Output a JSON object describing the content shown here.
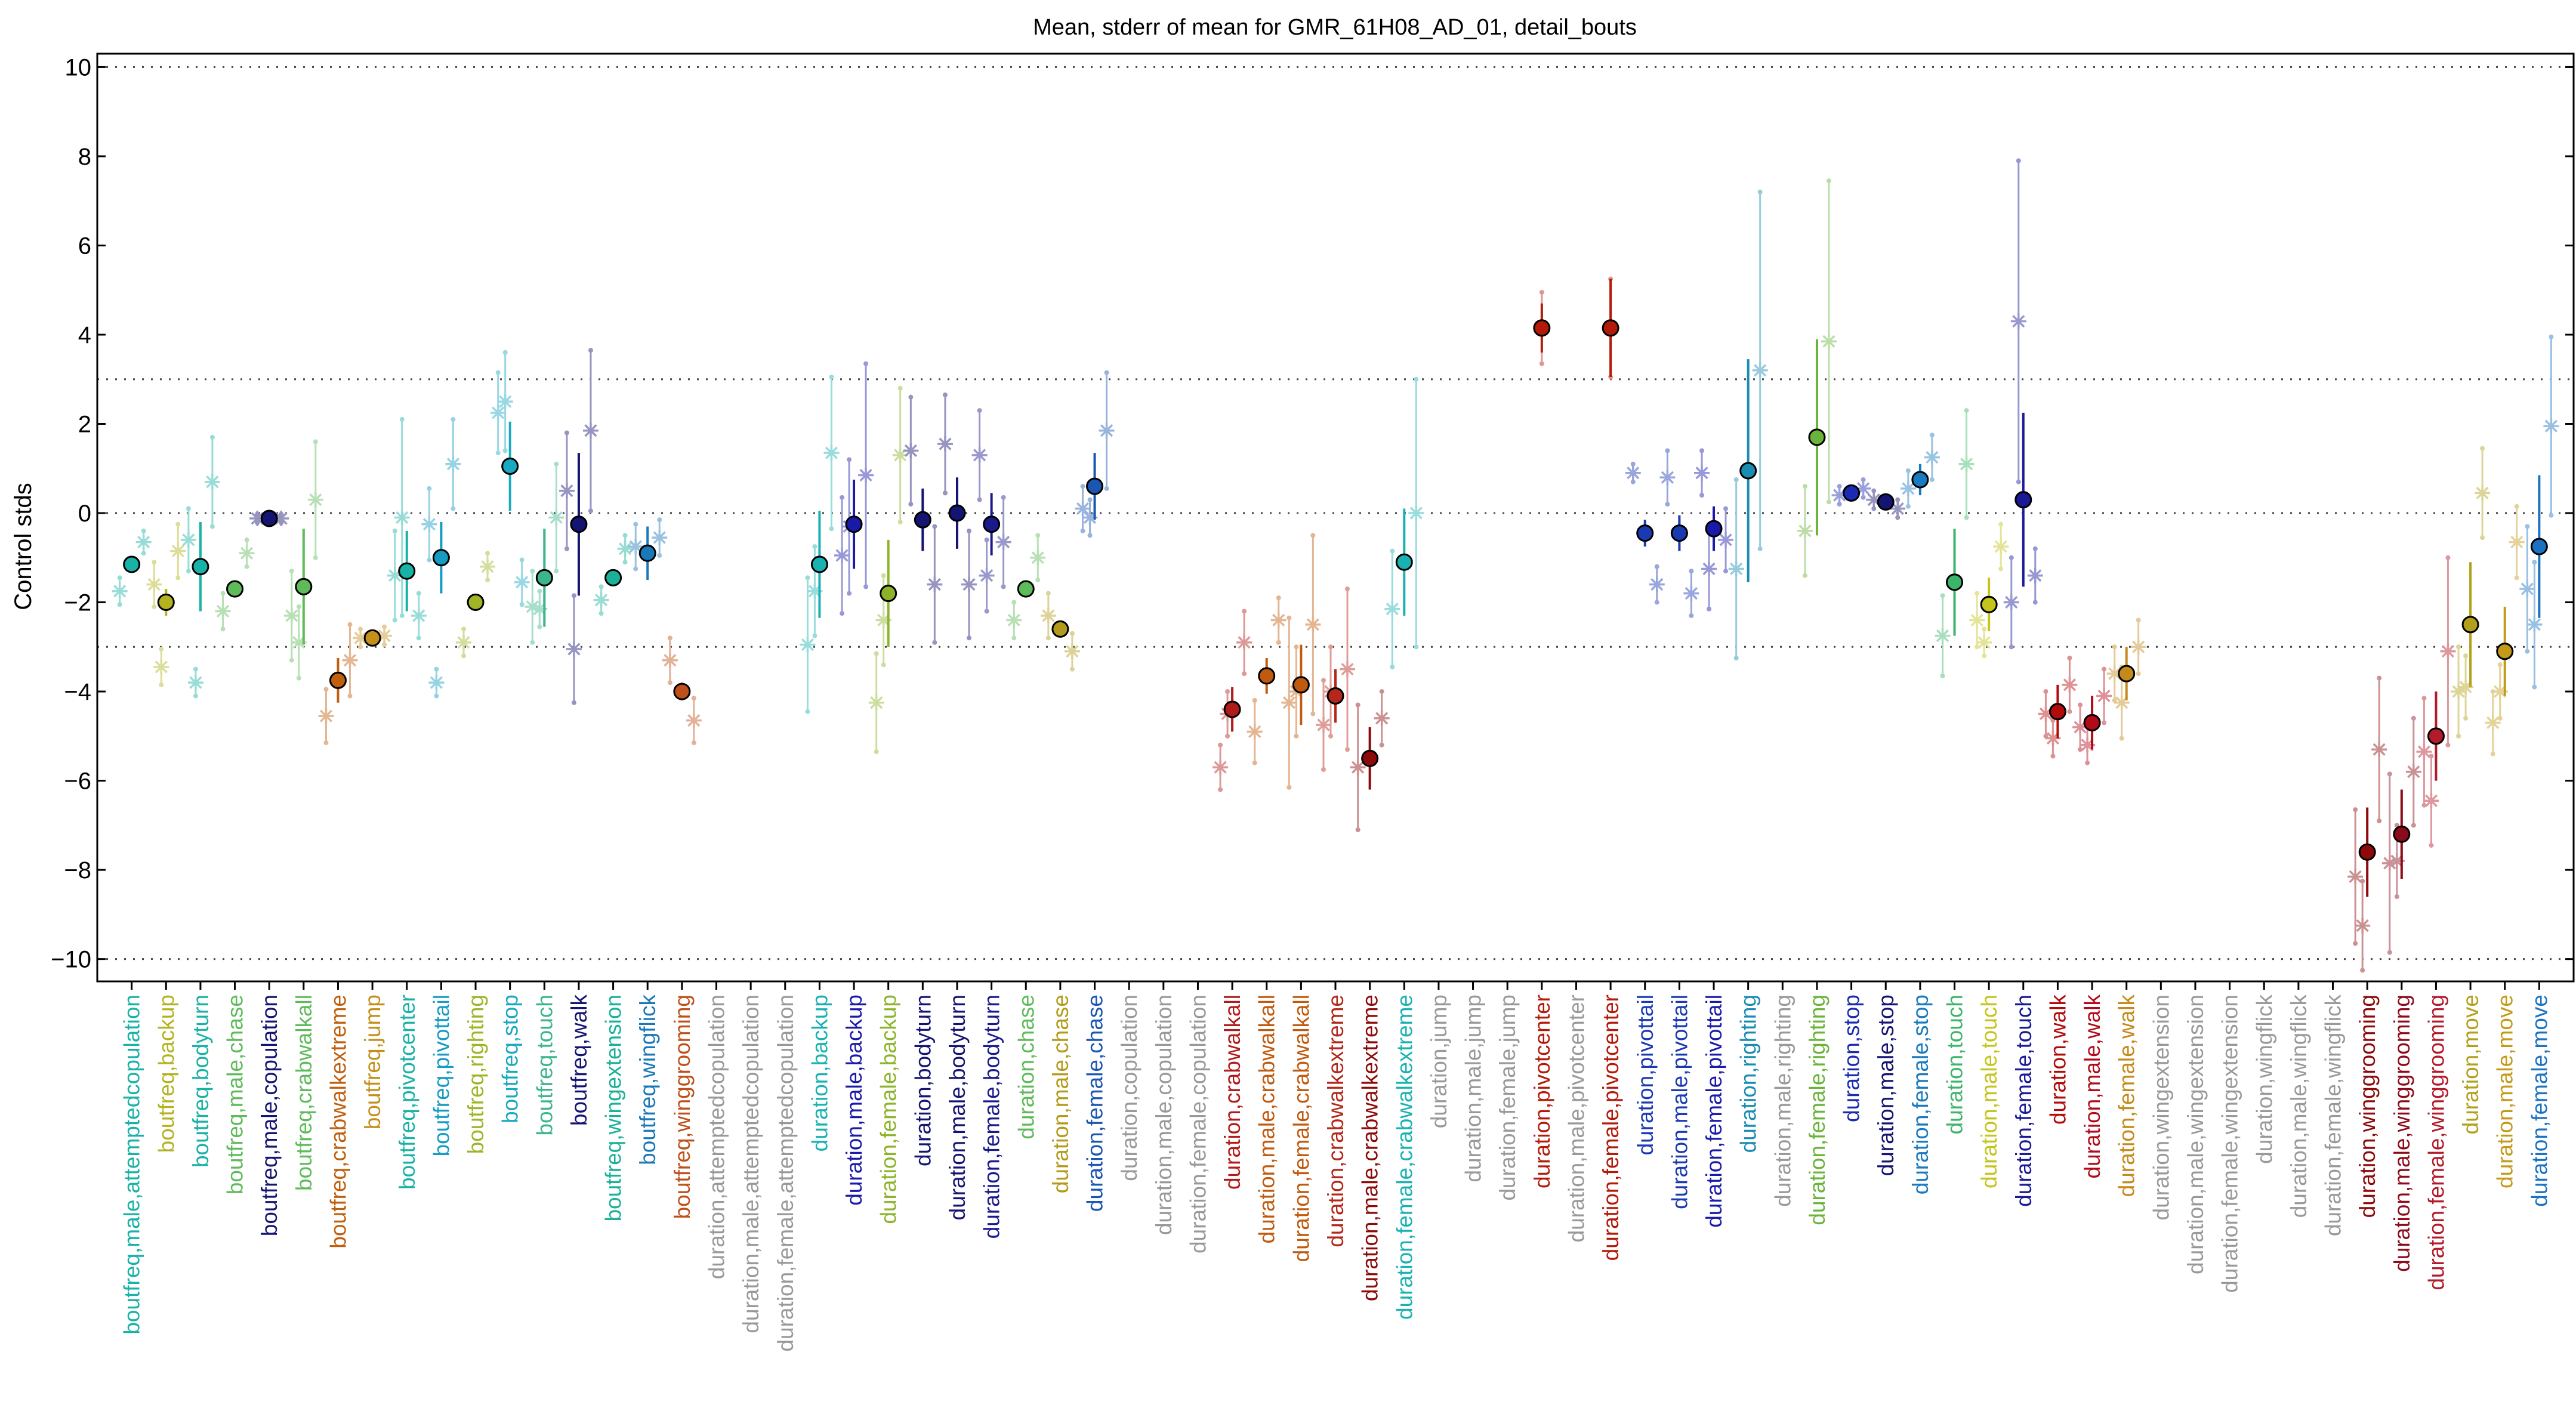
{
  "chart_data": {
    "type": "scatter",
    "title": "Mean, stderr of mean for GMR_61H08_AD_01, detail_bouts",
    "ylabel": "Control stds",
    "xlabel": "",
    "ylim": [
      -10.5,
      10.3
    ],
    "yticks": [
      -10,
      -8,
      -6,
      -4,
      -2,
      0,
      2,
      4,
      6,
      8,
      10
    ],
    "ytick_labels": [
      "−10",
      "−8",
      "−6",
      "−4",
      "−2",
      "0",
      "2",
      "4",
      "6",
      "8",
      "10"
    ],
    "reference_lines": [
      -10,
      -3,
      0,
      3,
      10
    ],
    "grid": false,
    "categories": [
      {
        "label": "boutfreq,male,attemptedcopulation",
        "color": "#19b2a6",
        "mean": -1.15,
        "sem": 0.1,
        "reps": [
          {
            "v": -1.75,
            "e": 0.3
          },
          {
            "v": -0.65,
            "e": 0.25
          }
        ]
      },
      {
        "label": "boutfreq,backup",
        "color": "#b3b31f",
        "mean": -2.0,
        "sem": 0.3,
        "reps": [
          {
            "v": -1.6,
            "e": 0.5
          },
          {
            "v": -0.85,
            "e": 0.6
          },
          {
            "v": -3.45,
            "e": 0.4
          }
        ]
      },
      {
        "label": "boutfreq,bodyturn",
        "color": "#19b2a6",
        "mean": -1.2,
        "sem": 1.0,
        "reps": [
          {
            "v": -0.6,
            "e": 0.7
          },
          {
            "v": 0.7,
            "e": 1.0
          },
          {
            "v": -3.8,
            "e": 0.3
          }
        ]
      },
      {
        "label": "boutfreq,male,chase",
        "color": "#5fba5a",
        "mean": -1.7,
        "sem": 0.15,
        "reps": [
          {
            "v": -2.2,
            "e": 0.4
          },
          {
            "v": -0.9,
            "e": 0.3
          }
        ]
      },
      {
        "label": "boutfreq,male,copulation",
        "color": "#141472",
        "mean": -0.12,
        "sem": 0.08,
        "reps": [
          {
            "v": -0.12,
            "e": 0.1
          },
          {
            "v": -0.12,
            "e": 0.1
          }
        ]
      },
      {
        "label": "boutfreq,crabwalkall",
        "color": "#5fba5a",
        "mean": -1.65,
        "sem": 1.3,
        "reps": [
          {
            "v": -2.3,
            "e": 1.0
          },
          {
            "v": 0.3,
            "e": 1.3
          },
          {
            "v": -2.9,
            "e": 0.8
          }
        ]
      },
      {
        "label": "boutfreq,crabwalkextreme",
        "color": "#c0600e",
        "mean": -3.75,
        "sem": 0.5,
        "reps": [
          {
            "v": -4.55,
            "e": 0.6
          },
          {
            "v": -3.3,
            "e": 0.8
          }
        ]
      },
      {
        "label": "boutfreq,jump",
        "color": "#c4901a",
        "mean": -2.8,
        "sem": 0.15,
        "reps": [
          {
            "v": -2.8,
            "e": 0.2
          },
          {
            "v": -2.75,
            "e": 0.2
          }
        ]
      },
      {
        "label": "boutfreq,pivotcenter",
        "color": "#19b2a6",
        "mean": -1.3,
        "sem": 0.9,
        "reps": [
          {
            "v": -1.4,
            "e": 1.0
          },
          {
            "v": -2.3,
            "e": 0.5
          },
          {
            "v": -0.1,
            "e": 2.2
          }
        ]
      },
      {
        "label": "boutfreq,pivottail",
        "color": "#169cc2",
        "mean": -1.0,
        "sem": 0.8,
        "reps": [
          {
            "v": -0.25,
            "e": 0.8
          },
          {
            "v": 1.1,
            "e": 1.0
          },
          {
            "v": -3.8,
            "e": 0.3
          }
        ]
      },
      {
        "label": "boutfreq,righting",
        "color": "#a0b426",
        "mean": -2.0,
        "sem": 0.15,
        "reps": [
          {
            "v": -2.9,
            "e": 0.3
          },
          {
            "v": -1.2,
            "e": 0.3
          }
        ]
      },
      {
        "label": "boutfreq,stop",
        "color": "#19a9c0",
        "mean": 1.05,
        "sem": 1.0,
        "reps": [
          {
            "v": 2.25,
            "e": 0.9
          },
          {
            "v": -1.55,
            "e": 0.5
          },
          {
            "v": 2.5,
            "e": 1.1
          }
        ]
      },
      {
        "label": "boutfreq,touch",
        "color": "#3cb58a",
        "mean": -1.45,
        "sem": 1.1,
        "reps": [
          {
            "v": -2.1,
            "e": 0.8
          },
          {
            "v": -0.1,
            "e": 1.2
          },
          {
            "v": -2.15,
            "e": 0.4
          }
        ]
      },
      {
        "label": "boutfreq,walk",
        "color": "#141472",
        "mean": -0.25,
        "sem": 1.6,
        "reps": [
          {
            "v": 0.5,
            "e": 1.3
          },
          {
            "v": 1.85,
            "e": 1.8
          },
          {
            "v": -3.05,
            "e": 1.2
          }
        ]
      },
      {
        "label": "boutfreq,wingextension",
        "color": "#19b298",
        "mean": -1.45,
        "sem": 0.1,
        "reps": [
          {
            "v": -1.95,
            "e": 0.3
          },
          {
            "v": -0.8,
            "e": 0.3
          }
        ]
      },
      {
        "label": "boutfreq,wingflick",
        "color": "#1a78b9",
        "mean": -0.9,
        "sem": 0.6,
        "reps": [
          {
            "v": -0.75,
            "e": 0.5
          },
          {
            "v": -0.55,
            "e": 0.4
          }
        ]
      },
      {
        "label": "boutfreq,winggrooming",
        "color": "#c0501a",
        "mean": -4.0,
        "sem": 0.2,
        "reps": [
          {
            "v": -3.3,
            "e": 0.5
          },
          {
            "v": -4.65,
            "e": 0.5
          }
        ]
      },
      {
        "label": "duration,attemptedcopulation",
        "color": "#999999"
      },
      {
        "label": "duration,male,attemptedcopulation",
        "color": "#999999"
      },
      {
        "label": "duration,female,attemptedcopulation",
        "color": "#999999"
      },
      {
        "label": "duration,backup",
        "color": "#19b2b2",
        "mean": -1.15,
        "sem": 1.2,
        "reps": [
          {
            "v": -2.95,
            "e": 1.5
          },
          {
            "v": 1.35,
            "e": 1.7
          },
          {
            "v": -1.75,
            "e": 1.0
          }
        ]
      },
      {
        "label": "duration,male,backup",
        "color": "#1a1aa8",
        "mean": -0.25,
        "sem": 1.0,
        "reps": [
          {
            "v": -0.95,
            "e": 1.3
          },
          {
            "v": 0.85,
            "e": 2.5
          },
          {
            "v": -0.3,
            "e": 1.5
          }
        ]
      },
      {
        "label": "duration,female,backup",
        "color": "#8cb42a",
        "mean": -1.8,
        "sem": 1.2,
        "reps": [
          {
            "v": -4.25,
            "e": 1.1
          },
          {
            "v": 1.3,
            "e": 1.5
          },
          {
            "v": -2.4,
            "e": 1.0
          }
        ]
      },
      {
        "label": "duration,bodyturn",
        "color": "#141472",
        "mean": -0.15,
        "sem": 0.7,
        "reps": [
          {
            "v": 1.4,
            "e": 1.2
          },
          {
            "v": -1.6,
            "e": 1.3
          }
        ]
      },
      {
        "label": "duration,male,bodyturn",
        "color": "#141472",
        "mean": 0.0,
        "sem": 0.8,
        "reps": [
          {
            "v": 1.55,
            "e": 1.1
          },
          {
            "v": -1.6,
            "e": 1.2
          }
        ]
      },
      {
        "label": "duration,female,bodyturn",
        "color": "#1a1a8c",
        "mean": -0.25,
        "sem": 0.7,
        "reps": [
          {
            "v": 1.3,
            "e": 1.0
          },
          {
            "v": -0.65,
            "e": 1.0
          },
          {
            "v": -1.4,
            "e": 0.8
          }
        ]
      },
      {
        "label": "duration,chase",
        "color": "#5fba5a",
        "mean": -1.7,
        "sem": 0.15,
        "reps": [
          {
            "v": -2.4,
            "e": 0.4
          },
          {
            "v": -1.0,
            "e": 0.5
          }
        ]
      },
      {
        "label": "duration,male,chase",
        "color": "#b39a1a",
        "mean": -2.6,
        "sem": 0.15,
        "reps": [
          {
            "v": -2.3,
            "e": 0.5
          },
          {
            "v": -3.1,
            "e": 0.4
          }
        ]
      },
      {
        "label": "duration,female,chase",
        "color": "#1a56b2",
        "mean": 0.6,
        "sem": 0.75,
        "reps": [
          {
            "v": 0.1,
            "e": 0.5
          },
          {
            "v": 1.85,
            "e": 1.3
          },
          {
            "v": -0.1,
            "e": 0.4
          }
        ]
      },
      {
        "label": "duration,copulation",
        "color": "#999999"
      },
      {
        "label": "duration,male,copulation",
        "color": "#999999"
      },
      {
        "label": "duration,female,copulation",
        "color": "#999999"
      },
      {
        "label": "duration,crabwalkall",
        "color": "#b31a1a",
        "mean": -4.4,
        "sem": 0.5,
        "reps": [
          {
            "v": -5.7,
            "e": 0.5
          },
          {
            "v": -2.9,
            "e": 0.7
          },
          {
            "v": -4.5,
            "e": 0.5
          }
        ]
      },
      {
        "label": "duration,male,crabwalkall",
        "color": "#c05a0e",
        "mean": -3.65,
        "sem": 0.4,
        "reps": [
          {
            "v": -4.9,
            "e": 0.7
          },
          {
            "v": -2.4,
            "e": 0.5
          }
        ]
      },
      {
        "label": "duration,female,crabwalkall",
        "color": "#c05a0e",
        "mean": -3.85,
        "sem": 0.9,
        "reps": [
          {
            "v": -4.25,
            "e": 1.9
          },
          {
            "v": -2.5,
            "e": 2.0
          },
          {
            "v": -4.0,
            "e": 1.0
          }
        ]
      },
      {
        "label": "duration,crabwalkextreme",
        "color": "#b3281a",
        "mean": -4.1,
        "sem": 0.6,
        "reps": [
          {
            "v": -4.75,
            "e": 1.0
          },
          {
            "v": -3.5,
            "e": 1.8
          },
          {
            "v": -4.0,
            "e": 1.0
          }
        ]
      },
      {
        "label": "duration,male,crabwalkextreme",
        "color": "#8c0a0a",
        "mean": -5.5,
        "sem": 0.7,
        "reps": [
          {
            "v": -5.7,
            "e": 1.4
          },
          {
            "v": -4.6,
            "e": 0.6
          }
        ]
      },
      {
        "label": "duration,female,crabwalkextreme",
        "color": "#19b2b2",
        "mean": -1.1,
        "sem": 1.2,
        "reps": [
          {
            "v": -2.15,
            "e": 1.3
          },
          {
            "v": 0.0,
            "e": 3.0
          }
        ]
      },
      {
        "label": "duration,jump",
        "color": "#999999"
      },
      {
        "label": "duration,male,jump",
        "color": "#999999"
      },
      {
        "label": "duration,female,jump",
        "color": "#999999"
      },
      {
        "label": "duration,pivotcenter",
        "color": "#b31a0a",
        "mean": 4.15,
        "sem": 0.55,
        "reps": [
          {
            "v": 4.15,
            "e": 0.8
          }
        ]
      },
      {
        "label": "duration,male,pivotcenter",
        "color": "#999999"
      },
      {
        "label": "duration,female,pivotcenter",
        "color": "#b31a0a",
        "mean": 4.15,
        "sem": 1.1,
        "reps": [
          {
            "v": 4.15,
            "e": 1.1
          }
        ]
      },
      {
        "label": "duration,pivottail",
        "color": "#1a3ab2",
        "mean": -0.45,
        "sem": 0.3,
        "reps": [
          {
            "v": 0.9,
            "e": 0.2
          },
          {
            "v": -1.6,
            "e": 0.4
          }
        ]
      },
      {
        "label": "duration,male,pivottail",
        "color": "#1a3ab2",
        "mean": -0.45,
        "sem": 0.4,
        "reps": [
          {
            "v": 0.8,
            "e": 0.6
          },
          {
            "v": -1.8,
            "e": 0.5
          }
        ]
      },
      {
        "label": "duration,female,pivottail",
        "color": "#1a1aa8",
        "mean": -0.35,
        "sem": 0.5,
        "reps": [
          {
            "v": 0.9,
            "e": 0.5
          },
          {
            "v": -0.6,
            "e": 0.7
          },
          {
            "v": -1.25,
            "e": 0.9
          }
        ]
      },
      {
        "label": "duration,righting",
        "color": "#1a8cb2",
        "mean": 0.95,
        "sem": 2.5,
        "reps": [
          {
            "v": -1.25,
            "e": 2.0
          },
          {
            "v": 3.2,
            "e": 4.0
          }
        ]
      },
      {
        "label": "duration,male,righting",
        "color": "#999999"
      },
      {
        "label": "duration,female,righting",
        "color": "#6ab43a",
        "mean": 1.7,
        "sem": 2.2,
        "reps": [
          {
            "v": -0.4,
            "e": 1.0
          },
          {
            "v": 3.85,
            "e": 3.6
          }
        ]
      },
      {
        "label": "duration,stop",
        "color": "#1a2ab2",
        "mean": 0.45,
        "sem": 0.15,
        "reps": [
          {
            "v": 0.4,
            "e": 0.2
          },
          {
            "v": 0.55,
            "e": 0.2
          }
        ]
      },
      {
        "label": "duration,male,stop",
        "color": "#141472",
        "mean": 0.25,
        "sem": 0.15,
        "reps": [
          {
            "v": 0.3,
            "e": 0.2
          },
          {
            "v": 0.1,
            "e": 0.2
          }
        ]
      },
      {
        "label": "duration,female,stop",
        "color": "#1a7ac0",
        "mean": 0.75,
        "sem": 0.35,
        "reps": [
          {
            "v": 0.55,
            "e": 0.4
          },
          {
            "v": 1.25,
            "e": 0.5
          }
        ]
      },
      {
        "label": "duration,touch",
        "color": "#3cb56a",
        "mean": -1.55,
        "sem": 1.2,
        "reps": [
          {
            "v": -2.75,
            "e": 0.9
          },
          {
            "v": 1.1,
            "e": 1.2
          }
        ]
      },
      {
        "label": "duration,male,touch",
        "color": "#c4c41a",
        "mean": -2.05,
        "sem": 0.6,
        "reps": [
          {
            "v": -2.4,
            "e": 0.6
          },
          {
            "v": -0.75,
            "e": 0.5
          },
          {
            "v": -2.9,
            "e": 0.3
          }
        ]
      },
      {
        "label": "duration,female,touch",
        "color": "#1a1a96",
        "mean": 0.3,
        "sem": 1.95,
        "reps": [
          {
            "v": -2.0,
            "e": 1.0
          },
          {
            "v": -1.4,
            "e": 0.6
          },
          {
            "v": 4.3,
            "e": 3.6
          }
        ]
      },
      {
        "label": "duration,walk",
        "color": "#b30a0a",
        "mean": -4.45,
        "sem": 0.6,
        "reps": [
          {
            "v": -4.5,
            "e": 0.5
          },
          {
            "v": -3.85,
            "e": 0.6
          },
          {
            "v": -5.05,
            "e": 0.4
          }
        ]
      },
      {
        "label": "duration,male,walk",
        "color": "#b30a1a",
        "mean": -4.7,
        "sem": 0.6,
        "reps": [
          {
            "v": -4.8,
            "e": 0.5
          },
          {
            "v": -4.1,
            "e": 0.6
          },
          {
            "v": -5.2,
            "e": 0.4
          }
        ]
      },
      {
        "label": "duration,female,walk",
        "color": "#c48a1a",
        "mean": -3.6,
        "sem": 0.6,
        "reps": [
          {
            "v": -3.6,
            "e": 0.6
          },
          {
            "v": -3.0,
            "e": 0.6
          },
          {
            "v": -4.25,
            "e": 0.8
          }
        ]
      },
      {
        "label": "duration,wingextension",
        "color": "#999999"
      },
      {
        "label": "duration,male,wingextension",
        "color": "#999999"
      },
      {
        "label": "duration,female,wingextension",
        "color": "#999999"
      },
      {
        "label": "duration,wingflick",
        "color": "#999999"
      },
      {
        "label": "duration,male,wingflick",
        "color": "#999999"
      },
      {
        "label": "duration,female,wingflick",
        "color": "#999999"
      },
      {
        "label": "duration,winggrooming",
        "color": "#8c0a0a",
        "mean": -7.6,
        "sem": 1.0,
        "reps": [
          {
            "v": -8.15,
            "e": 1.5
          },
          {
            "v": -5.3,
            "e": 1.6
          },
          {
            "v": -9.25,
            "e": 1.0
          }
        ]
      },
      {
        "label": "duration,male,winggrooming",
        "color": "#8c0a1a",
        "mean": -7.2,
        "sem": 1.0,
        "reps": [
          {
            "v": -7.85,
            "e": 2.0
          },
          {
            "v": -5.8,
            "e": 1.2
          },
          {
            "v": -7.8,
            "e": 0.8
          }
        ]
      },
      {
        "label": "duration,female,winggrooming",
        "color": "#b31a2a",
        "mean": -5.0,
        "sem": 1.0,
        "reps": [
          {
            "v": -5.35,
            "e": 1.2
          },
          {
            "v": -3.1,
            "e": 2.1
          },
          {
            "v": -6.45,
            "e": 1.0
          }
        ]
      },
      {
        "label": "duration,move",
        "color": "#b3a01a",
        "mean": -2.5,
        "sem": 1.4,
        "reps": [
          {
            "v": -4.0,
            "e": 1.0
          },
          {
            "v": 0.45,
            "e": 1.0
          },
          {
            "v": -3.9,
            "e": 0.7
          }
        ]
      },
      {
        "label": "duration,male,move",
        "color": "#c49a1a",
        "mean": -3.1,
        "sem": 1.0,
        "reps": [
          {
            "v": -4.7,
            "e": 0.7
          },
          {
            "v": -0.65,
            "e": 0.8
          },
          {
            "v": -4.0,
            "e": 0.6
          }
        ]
      },
      {
        "label": "duration,female,move",
        "color": "#1a72c0",
        "mean": -0.75,
        "sem": 1.6,
        "reps": [
          {
            "v": -1.7,
            "e": 1.4
          },
          {
            "v": 1.95,
            "e": 2.0
          },
          {
            "v": -2.5,
            "e": 1.4
          }
        ]
      }
    ]
  }
}
